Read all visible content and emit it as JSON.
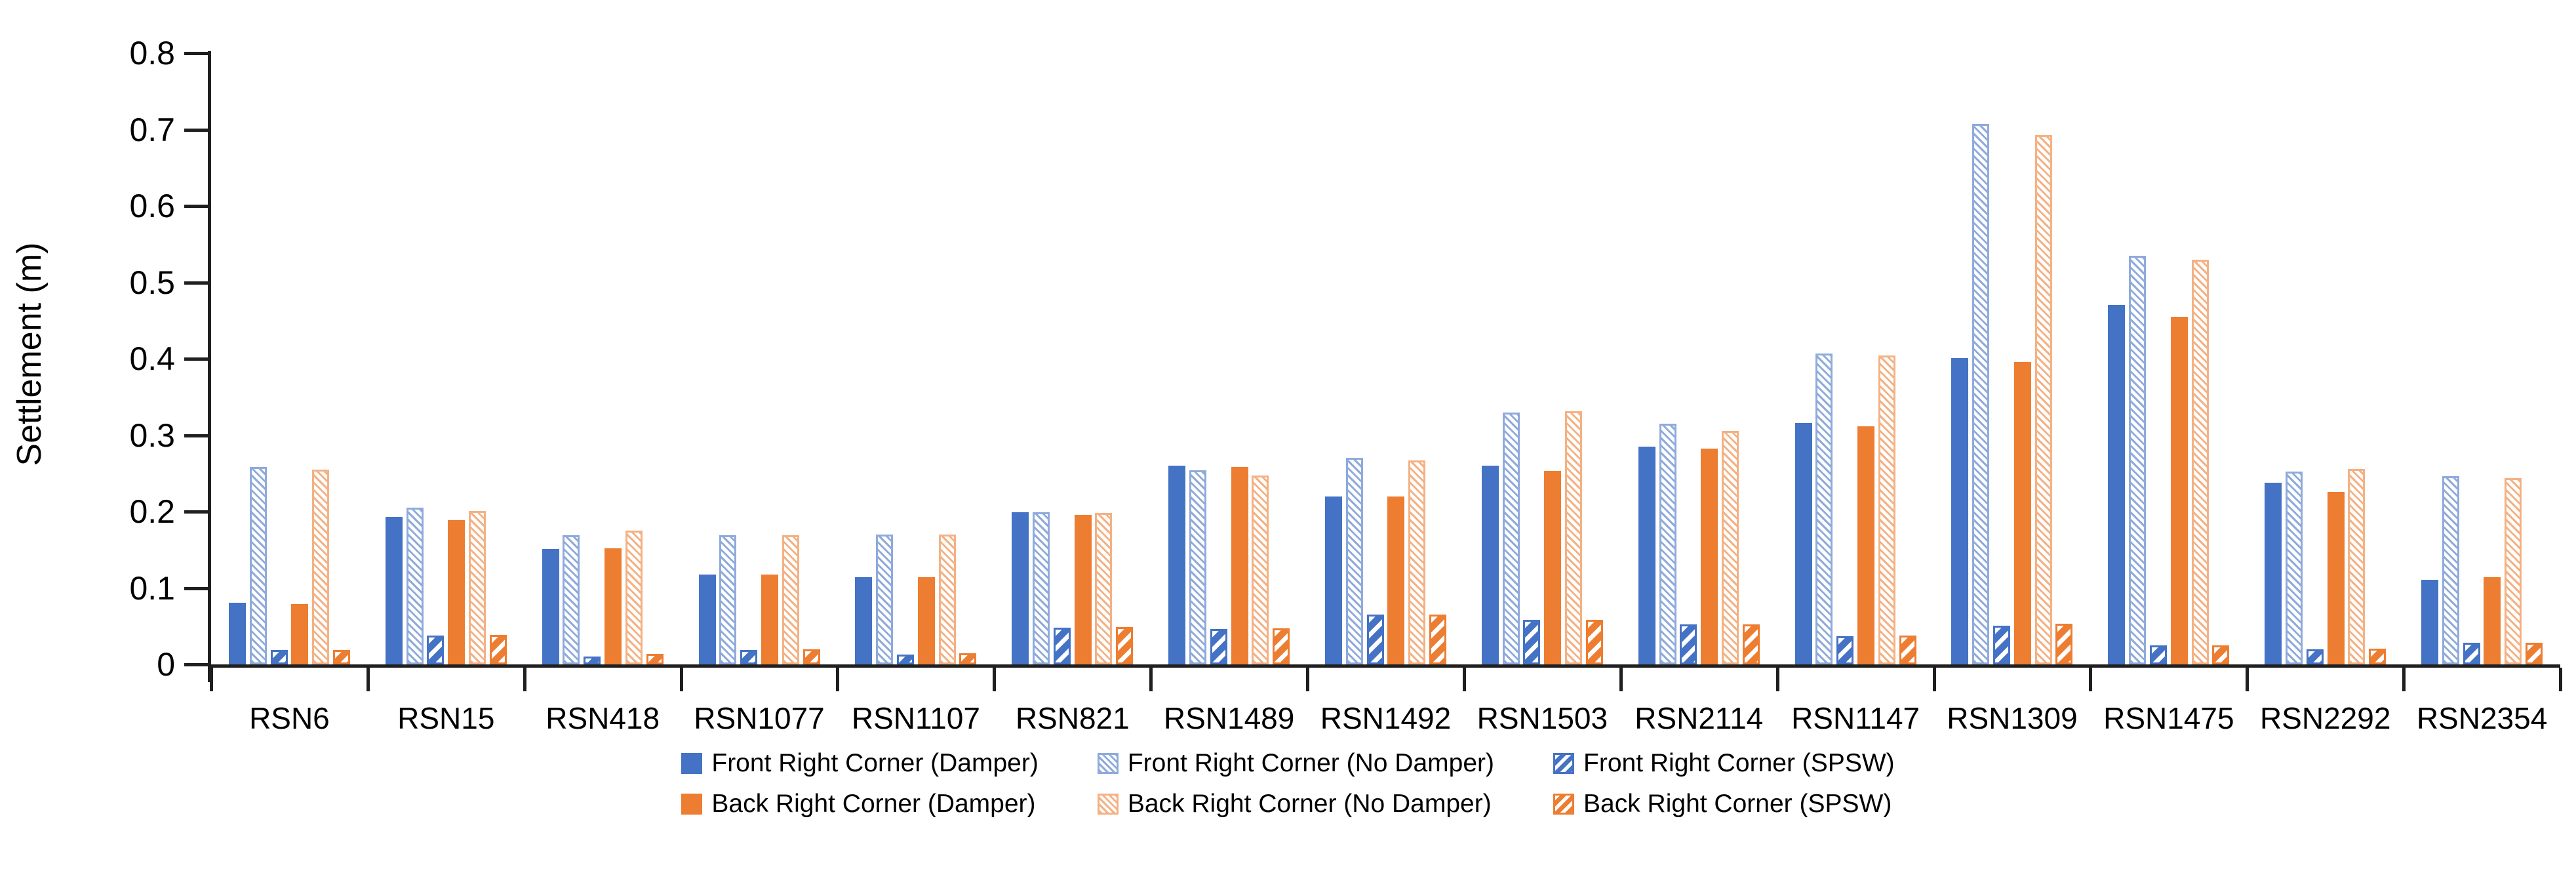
{
  "chart_data": {
    "type": "bar",
    "title": "",
    "xlabel": "",
    "ylabel": "Settlement (m)",
    "ylim": [
      0,
      0.8
    ],
    "ytick_step": 0.1,
    "ytick_labels": [
      "0",
      "0.1",
      "0.2",
      "0.3",
      "0.4",
      "0.5",
      "0.6",
      "0.7",
      "0.8"
    ],
    "grid": false,
    "legend_position": "bottom",
    "legend_rows": [
      [
        0,
        1,
        2
      ],
      [
        3,
        4,
        5
      ]
    ],
    "categories": [
      "RSN6",
      "RSN15",
      "RSN418",
      "RSN1077",
      "RSN1107",
      "RSN821",
      "RSN1489",
      "RSN1492",
      "RSN1503",
      "RSN2114",
      "RSN1147",
      "RSN1309",
      "RSN1475",
      "RSN2292",
      "RSN2354"
    ],
    "series": [
      {
        "name": "Front Right Corner (Damper)",
        "style": "solid",
        "color": "#4472C4",
        "border": "#4472C4",
        "values": [
          0.081,
          0.193,
          0.151,
          0.118,
          0.114,
          0.199,
          0.26,
          0.22,
          0.26,
          0.285,
          0.316,
          0.401,
          0.47,
          0.238,
          0.111
        ]
      },
      {
        "name": "Front Right Corner (No Damper)",
        "style": "hatch-fine",
        "color": "#4472C4",
        "border": "#8FAADC",
        "values": [
          0.258,
          0.205,
          0.169,
          0.169,
          0.17,
          0.199,
          0.254,
          0.27,
          0.33,
          0.315,
          0.407,
          0.707,
          0.535,
          0.252,
          0.246
        ]
      },
      {
        "name": "Front Right Corner (SPSW)",
        "style": "stripe",
        "color": "#4472C4",
        "border": "#4472C4",
        "values": [
          0.019,
          0.038,
          0.01,
          0.019,
          0.013,
          0.048,
          0.046,
          0.065,
          0.058,
          0.052,
          0.037,
          0.051,
          0.025,
          0.02,
          0.028
        ]
      },
      {
        "name": "Back Right Corner (Damper)",
        "style": "solid",
        "color": "#ED7D31",
        "border": "#ED7D31",
        "values": [
          0.079,
          0.189,
          0.152,
          0.118,
          0.114,
          0.196,
          0.258,
          0.22,
          0.253,
          0.282,
          0.312,
          0.396,
          0.455,
          0.226,
          0.114
        ]
      },
      {
        "name": "Back Right Corner (No Damper)",
        "style": "hatch-fine",
        "color": "#ED7D31",
        "border": "#F4B183",
        "values": [
          0.255,
          0.201,
          0.175,
          0.169,
          0.17,
          0.198,
          0.247,
          0.267,
          0.331,
          0.306,
          0.404,
          0.693,
          0.53,
          0.256,
          0.244
        ]
      },
      {
        "name": "Back Right Corner (SPSW)",
        "style": "stripe",
        "color": "#ED7D31",
        "border": "#ED7D31",
        "values": [
          0.019,
          0.039,
          0.014,
          0.02,
          0.015,
          0.049,
          0.047,
          0.065,
          0.058,
          0.052,
          0.038,
          0.053,
          0.025,
          0.021,
          0.028
        ]
      }
    ]
  }
}
